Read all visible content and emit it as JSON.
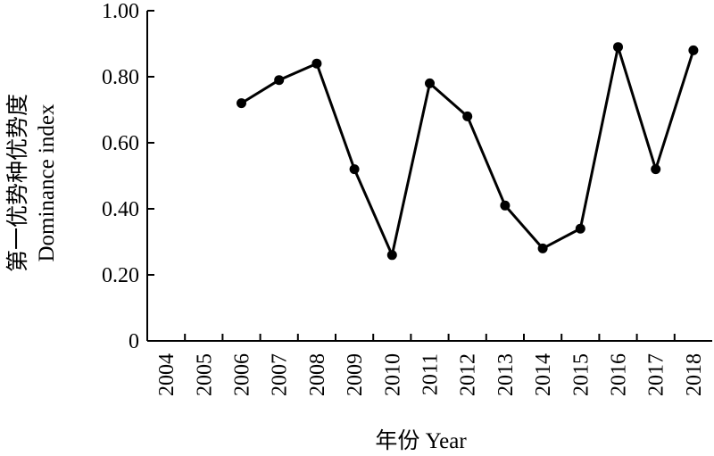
{
  "chart_data": {
    "type": "line",
    "title": "",
    "ylabel_cn": "第一优势种优势度",
    "ylabel_en": "Dominance index",
    "xlabel": "年份 Year",
    "ylim": [
      0,
      1.0
    ],
    "y_ticks": [
      "0",
      "0.20",
      "0.40",
      "0.60",
      "0.80",
      "1.00"
    ],
    "y_tick_values": [
      0,
      0.2,
      0.4,
      0.6,
      0.8,
      1.0
    ],
    "categories": [
      "2004",
      "2005",
      "2006",
      "2007",
      "2008",
      "2009",
      "2010",
      "2011",
      "2012",
      "2013",
      "2014",
      "2015",
      "2016",
      "2017",
      "2018"
    ],
    "series": [
      {
        "values": [
          null,
          null,
          0.72,
          0.79,
          0.84,
          0.52,
          0.26,
          0.78,
          0.68,
          0.41,
          0.28,
          0.34,
          0.89,
          0.52,
          0.88
        ]
      }
    ],
    "grid": false,
    "legend": "none"
  }
}
